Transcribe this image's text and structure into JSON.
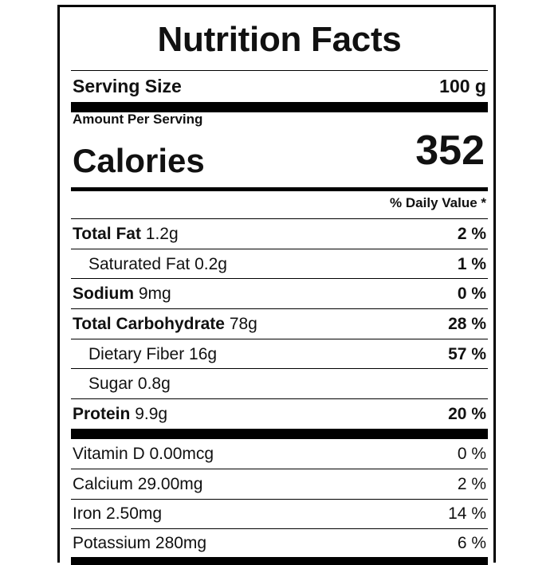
{
  "title": "Nutrition Facts",
  "serving": {
    "label": "Serving Size",
    "value": "100 g"
  },
  "amount_per_serving": "Amount Per Serving",
  "calories": {
    "label": "Calories",
    "value": "352"
  },
  "daily_value_header": "% Daily Value *",
  "nutrients": [
    {
      "name": "Total Fat",
      "amount": "1.2g",
      "dv": "2 %"
    },
    {
      "name": "Saturated Fat",
      "amount": "0.2g",
      "dv": "1 %"
    },
    {
      "name": "Sodium",
      "amount": "9mg",
      "dv": "0 %"
    },
    {
      "name": "Total Carbohydrate",
      "amount": "78g",
      "dv": "28 %"
    },
    {
      "name": "Dietary Fiber",
      "amount": "16g",
      "dv": "57 %"
    },
    {
      "name": "Sugar",
      "amount": "0.8g",
      "dv": ""
    },
    {
      "name": "Protein",
      "amount": "9.9g",
      "dv": "20 %"
    }
  ],
  "vitamins": [
    {
      "name": "Vitamin D",
      "amount": "0.00mcg",
      "dv": "0 %"
    },
    {
      "name": "Calcium",
      "amount": "29.00mg",
      "dv": "2 %"
    },
    {
      "name": "Iron",
      "amount": "2.50mg",
      "dv": "14 %"
    },
    {
      "name": "Potassium",
      "amount": "280mg",
      "dv": "6 %"
    }
  ]
}
